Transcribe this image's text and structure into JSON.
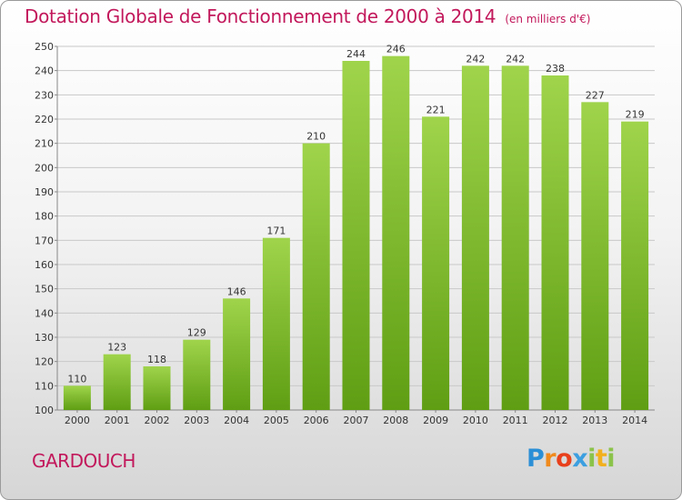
{
  "title": "Dotation Globale de Fonctionnement de 2000 à 2014",
  "subtitle": "(en milliers d'€)",
  "commune": "GARDOUCH",
  "brand": {
    "letters": [
      "P",
      "r",
      "o",
      "x",
      "i",
      "t",
      "i"
    ],
    "colors": [
      "#2b8fd6",
      "#f08a1c",
      "#e8401c",
      "#3c9fe0",
      "#8bc34a",
      "#f2b01e",
      "#8bc34a"
    ]
  },
  "colors": {
    "title": "#c2185b",
    "bar_light": "#9fd44b",
    "bar_dark": "#5f9e14",
    "grid": "#c8c8c8"
  },
  "chart_data": {
    "type": "bar",
    "title": "Dotation Globale de Fonctionnement de 2000 à 2014",
    "subtitle": "(en milliers d'€)",
    "categories": [
      "2000",
      "2001",
      "2002",
      "2003",
      "2004",
      "2005",
      "2006",
      "2007",
      "2008",
      "2009",
      "2010",
      "2011",
      "2012",
      "2013",
      "2014"
    ],
    "values": [
      110,
      123,
      118,
      129,
      146,
      171,
      210,
      244,
      246,
      221,
      242,
      242,
      238,
      227,
      219
    ],
    "ylim": [
      100,
      250
    ],
    "yticks": [
      100,
      110,
      120,
      130,
      140,
      150,
      160,
      170,
      180,
      190,
      200,
      210,
      220,
      230,
      240,
      250
    ],
    "grid": true,
    "xlabel": "",
    "ylabel": ""
  }
}
